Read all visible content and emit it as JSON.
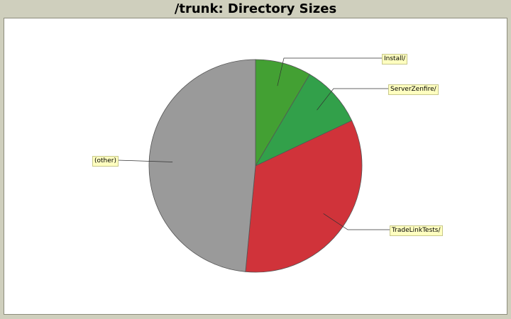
{
  "chart_data": {
    "type": "pie",
    "title": "/trunk: Directory Sizes",
    "slices": [
      {
        "label": "Install/",
        "value": 8.5,
        "color": "#43a033"
      },
      {
        "label": "ServerZenfire/",
        "value": 9.5,
        "color": "#32a04a"
      },
      {
        "label": "TradeLinkTests/",
        "value": 33.5,
        "color": "#d0333a"
      },
      {
        "label": "(other)",
        "value": 48.5,
        "color": "#9a9a9a"
      }
    ]
  }
}
